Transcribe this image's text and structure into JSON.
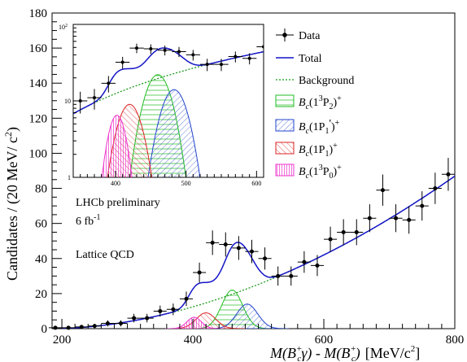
{
  "chart_data": {
    "type": "line",
    "xlabel_left": "M(B",
    "xlabel_left_sup": "+",
    "xlabel_left_sub": "c",
    "xlabel_gamma": "γ) - M(B",
    "xlabel_right_sup": "+",
    "xlabel_right_sub": "c",
    "xlabel_close": ")",
    "xlabel_units": "[MeV/c",
    "xlabel_units_sup": "2",
    "xlabel_units_close": "]",
    "ylabel_main": "Candidates / (20 MeV/ c",
    "ylabel_sup": "2",
    "ylabel_close": ")",
    "xlim": [
      185,
      800
    ],
    "ylim": [
      0,
      180
    ],
    "xticks": [
      200,
      400,
      600,
      800
    ],
    "yticks": [
      0,
      20,
      40,
      60,
      80,
      100,
      120,
      140,
      160,
      180
    ],
    "annotations": [
      "LHCb preliminary",
      "6 fb",
      "-1",
      "Lattice QCD"
    ],
    "legend": {
      "placement": "top-right",
      "data": "Data",
      "total": "Total",
      "background": "Background",
      "b2": {
        "main": "B",
        "sub": "c",
        "open": "(1",
        "sup": "3",
        "mid": "P",
        "sub2": "2",
        "close": ")",
        "charge": "+"
      },
      "b1p": {
        "main": "B",
        "sub": "c",
        "open": "(1P",
        "sub2": "1",
        "prime": "'",
        "close": ")",
        "charge": "+"
      },
      "b1": {
        "main": "B",
        "sub": "c",
        "open": "(1P",
        "sub2": "1",
        "close": ")",
        "charge": "+"
      },
      "b0": {
        "main": "B",
        "sub": "c",
        "open": "(1",
        "sup": "3",
        "mid": "P",
        "sub2": "0",
        "close": ")",
        "charge": "+"
      }
    },
    "colors": {
      "total": "#1414c8",
      "background": "#1a9a1a",
      "b2": "#22bb22",
      "b1p": "#2244cc",
      "b1": "#dd2222",
      "b0": "#ee33cc"
    },
    "data_points": {
      "x": [
        190,
        210,
        230,
        250,
        270,
        290,
        310,
        330,
        350,
        370,
        390,
        410,
        430,
        450,
        470,
        490,
        510,
        530,
        550,
        570,
        590,
        610,
        630,
        650,
        670,
        690,
        710,
        730,
        750,
        770,
        790
      ],
      "y": [
        0.5,
        0.5,
        1,
        1.5,
        3,
        3,
        6,
        6,
        10,
        11,
        17,
        32,
        49,
        48,
        46,
        44,
        40,
        30,
        30,
        38,
        36,
        51,
        55,
        55,
        63,
        79,
        63,
        62,
        70,
        80,
        88
      ],
      "xerr": 10
    },
    "components": {
      "b2": {
        "mean": 460,
        "sigma": 16,
        "amp": 22,
        "hatch": "horizontal"
      },
      "b1p": {
        "mean": 483,
        "sigma": 16,
        "amp": 14,
        "hatch": "diag-right"
      },
      "b1": {
        "mean": 420,
        "sigma": 15,
        "amp": 9,
        "hatch": "diag-left"
      },
      "b0": {
        "mean": 402,
        "sigma": 11,
        "amp": 6.5,
        "hatch": "vertical"
      }
    },
    "inset": {
      "xlim": [
        340,
        610
      ],
      "xticks": [
        400,
        500,
        600
      ],
      "ylim_log": [
        1,
        100
      ],
      "yticks_log": [
        1,
        10,
        100
      ],
      "ytick_labels": [
        "1",
        "10",
        "10"
      ],
      "ytick_label_top_sup": "2",
      "scale": "log"
    }
  }
}
